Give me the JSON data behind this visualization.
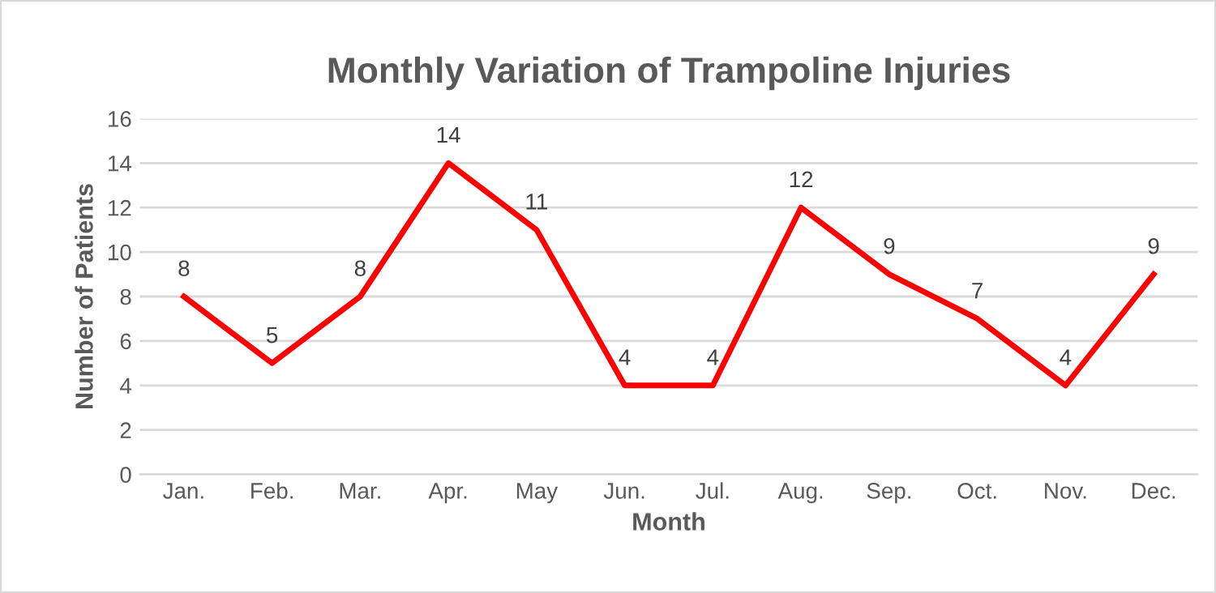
{
  "chart_data": {
    "type": "line",
    "title": "Monthly Variation of Trampoline Injuries",
    "xlabel": "Month",
    "ylabel": "Number of Patients",
    "categories": [
      "Jan.",
      "Feb.",
      "Mar.",
      "Apr.",
      "May",
      "Jun.",
      "Jul.",
      "Aug.",
      "Sep.",
      "Oct.",
      "Nov.",
      "Dec."
    ],
    "series": [
      {
        "color": "#ff0000",
        "values": [
          8,
          5,
          8,
          14,
          11,
          4,
          4,
          12,
          9,
          7,
          4,
          9
        ]
      }
    ],
    "ylim": [
      0,
      16
    ],
    "yticks": [
      0,
      2,
      4,
      6,
      8,
      10,
      12,
      14,
      16
    ],
    "grid": "y",
    "data_labels": true,
    "marker": "none",
    "line_style": "solid"
  }
}
